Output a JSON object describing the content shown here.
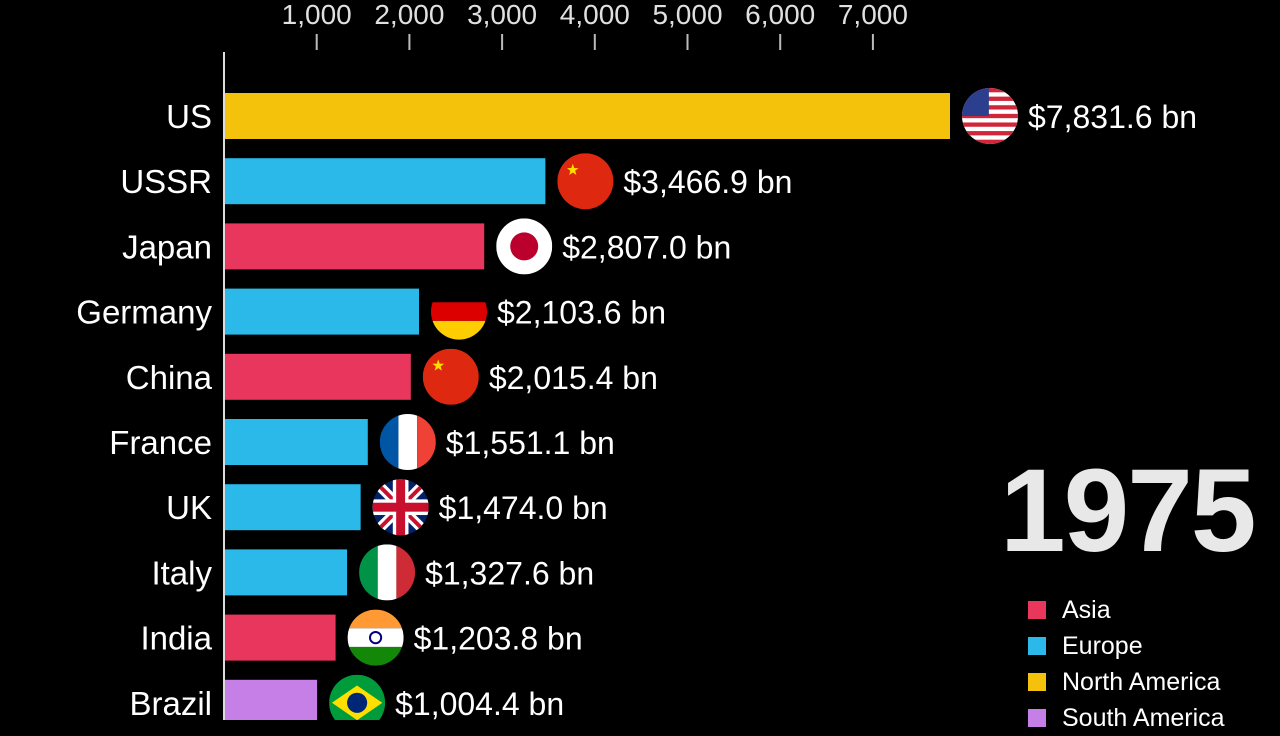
{
  "colors": {
    "Asia": "#E8365D",
    "Europe": "#2AB9E8",
    "North America": "#F5C20B",
    "South America": "#C77FE8",
    "background": "#000000"
  },
  "chart_data": {
    "type": "bar",
    "orientation": "horizontal",
    "year": "1975",
    "unit_suffix": " bn",
    "xlim": [
      0,
      7831.6
    ],
    "x_ticks": [
      "1,000",
      "2,000",
      "3,000",
      "4,000",
      "5,000",
      "6,000",
      "7,000"
    ],
    "x_tick_values": [
      1000,
      2000,
      3000,
      4000,
      5000,
      6000,
      7000
    ],
    "grid": false,
    "legend_position": "bottom-right",
    "bars": [
      {
        "country": "US",
        "value": 7831.6,
        "value_label": "$7,831.6 bn",
        "region": "North America",
        "flag_icon": "us-flag-icon"
      },
      {
        "country": "USSR",
        "value": 3466.9,
        "value_label": "$3,466.9 bn",
        "region": "Europe",
        "flag_icon": "ussr-flag-icon"
      },
      {
        "country": "Japan",
        "value": 2807.0,
        "value_label": "$2,807.0 bn",
        "region": "Asia",
        "flag_icon": "japan-flag-icon"
      },
      {
        "country": "Germany",
        "value": 2103.6,
        "value_label": "$2,103.6 bn",
        "region": "Europe",
        "flag_icon": "germany-flag-icon"
      },
      {
        "country": "China",
        "value": 2015.4,
        "value_label": "$2,015.4 bn",
        "region": "Asia",
        "flag_icon": "china-flag-icon"
      },
      {
        "country": "France",
        "value": 1551.1,
        "value_label": "$1,551.1 bn",
        "region": "Europe",
        "flag_icon": "france-flag-icon"
      },
      {
        "country": "UK",
        "value": 1474.0,
        "value_label": "$1,474.0 bn",
        "region": "Europe",
        "flag_icon": "uk-flag-icon"
      },
      {
        "country": "Italy",
        "value": 1327.6,
        "value_label": "$1,327.6 bn",
        "region": "Europe",
        "flag_icon": "italy-flag-icon"
      },
      {
        "country": "India",
        "value": 1203.8,
        "value_label": "$1,203.8 bn",
        "region": "Asia",
        "flag_icon": "india-flag-icon"
      },
      {
        "country": "Brazil",
        "value": 1004.4,
        "value_label": "$1,004.4 bn",
        "region": "South America",
        "flag_icon": "brazil-flag-icon"
      }
    ]
  },
  "legend": {
    "items": [
      {
        "label": "Asia"
      },
      {
        "label": "Europe"
      },
      {
        "label": "North America"
      },
      {
        "label": "South America"
      }
    ]
  }
}
